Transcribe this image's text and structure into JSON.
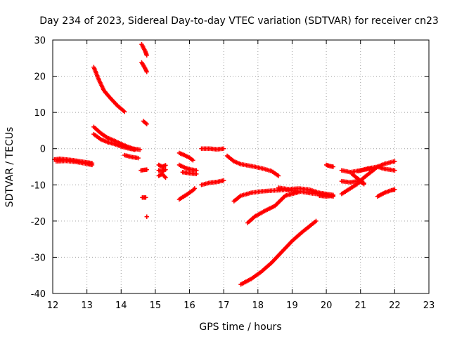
{
  "chart_data": {
    "type": "scatter",
    "title": "Day 234 of 2023, Sidereal Day-to-day VTEC variation (SDTVAR) for receiver cn23",
    "xlabel": "GPS time / hours",
    "ylabel": "SDTVAR / TECUs",
    "xlim": [
      12,
      23
    ],
    "ylim": [
      -40,
      30
    ],
    "x_ticks": [
      12,
      13,
      14,
      15,
      16,
      17,
      18,
      19,
      20,
      21,
      22,
      23
    ],
    "y_ticks": [
      -40,
      -30,
      -20,
      -10,
      0,
      10,
      20,
      30
    ],
    "x_tick_labels": [
      "12",
      "13",
      "14",
      "15",
      "16",
      "17",
      "18",
      "19",
      "20",
      "21",
      "22",
      "23"
    ],
    "y_tick_labels": [
      "-40",
      "-30",
      "-20",
      "-10",
      "0",
      "10",
      "20",
      "30"
    ],
    "grid": true,
    "marker": "+",
    "color": "#ff0000",
    "series": [
      {
        "name": "s1",
        "points": [
          [
            12.05,
            -3.0
          ],
          [
            12.2,
            -2.8
          ],
          [
            12.4,
            -3.0
          ],
          [
            12.6,
            -3.2
          ],
          [
            12.8,
            -3.5
          ],
          [
            13.0,
            -3.8
          ],
          [
            13.15,
            -4.0
          ]
        ]
      },
      {
        "name": "s2",
        "points": [
          [
            12.1,
            -3.5
          ],
          [
            12.4,
            -3.4
          ],
          [
            12.7,
            -3.7
          ],
          [
            13.0,
            -4.2
          ],
          [
            13.15,
            -4.5
          ]
        ]
      },
      {
        "name": "s3",
        "points": [
          [
            13.2,
            22.5
          ],
          [
            13.35,
            19.0
          ],
          [
            13.5,
            16.0
          ],
          [
            13.7,
            13.8
          ],
          [
            13.9,
            11.8
          ],
          [
            14.1,
            10.2
          ]
        ]
      },
      {
        "name": "s4",
        "points": [
          [
            13.2,
            6.0
          ],
          [
            13.4,
            4.3
          ],
          [
            13.6,
            3.0
          ],
          [
            13.8,
            2.2
          ],
          [
            14.0,
            1.3
          ],
          [
            14.2,
            0.5
          ],
          [
            14.35,
            0.0
          ],
          [
            14.55,
            -0.3
          ]
        ]
      },
      {
        "name": "s5",
        "points": [
          [
            13.2,
            4.0
          ],
          [
            13.4,
            2.6
          ],
          [
            13.6,
            1.8
          ],
          [
            13.8,
            1.3
          ],
          [
            14.0,
            0.6
          ],
          [
            14.2,
            0.1
          ],
          [
            14.4,
            -0.3
          ]
        ]
      },
      {
        "name": "s6",
        "points": [
          [
            14.1,
            -1.8
          ],
          [
            14.3,
            -2.3
          ],
          [
            14.5,
            -2.6
          ]
        ]
      },
      {
        "name": "s7",
        "points": [
          [
            14.6,
            28.8
          ],
          [
            14.7,
            27.0
          ],
          [
            14.75,
            25.8
          ]
        ]
      },
      {
        "name": "s8",
        "points": [
          [
            14.6,
            23.8
          ],
          [
            14.7,
            22.2
          ],
          [
            14.75,
            21.2
          ]
        ]
      },
      {
        "name": "s9",
        "points": [
          [
            14.65,
            7.6
          ],
          [
            14.75,
            6.8
          ]
        ]
      },
      {
        "name": "s10",
        "points": [
          [
            14.58,
            -6.0
          ],
          [
            14.65,
            -5.9
          ],
          [
            14.75,
            -5.8
          ]
        ]
      },
      {
        "name": "s11",
        "points": [
          [
            14.62,
            -13.5
          ],
          [
            14.72,
            -13.5
          ]
        ]
      },
      {
        "name": "s12",
        "points": [
          [
            14.75,
            -18.8
          ]
        ]
      },
      {
        "name": "s13",
        "points": [
          [
            15.1,
            -4.5
          ],
          [
            15.2,
            -5.0
          ],
          [
            15.3,
            -4.6
          ]
        ]
      },
      {
        "name": "s14",
        "points": [
          [
            15.1,
            -7.5
          ],
          [
            15.2,
            -7.0
          ],
          [
            15.3,
            -8.0
          ]
        ]
      },
      {
        "name": "s15",
        "points": [
          [
            15.1,
            -6.0
          ],
          [
            15.2,
            -6.2
          ],
          [
            15.3,
            -5.8
          ]
        ]
      },
      {
        "name": "s16",
        "points": [
          [
            15.7,
            -1.2
          ],
          [
            15.85,
            -1.8
          ],
          [
            16.0,
            -2.5
          ],
          [
            16.1,
            -3.2
          ]
        ]
      },
      {
        "name": "s17",
        "points": [
          [
            15.7,
            -4.5
          ],
          [
            15.85,
            -5.2
          ],
          [
            16.0,
            -5.7
          ],
          [
            16.2,
            -6.0
          ]
        ]
      },
      {
        "name": "s18",
        "points": [
          [
            15.8,
            -6.5
          ],
          [
            16.0,
            -6.8
          ],
          [
            16.2,
            -7.0
          ]
        ]
      },
      {
        "name": "s19",
        "points": [
          [
            15.7,
            -14.0
          ],
          [
            15.9,
            -12.8
          ],
          [
            16.1,
            -11.5
          ],
          [
            16.15,
            -11.0
          ]
        ]
      },
      {
        "name": "s20",
        "points": [
          [
            16.35,
            0.0
          ],
          [
            16.6,
            0.0
          ],
          [
            16.8,
            -0.2
          ],
          [
            17.0,
            0.0
          ]
        ]
      },
      {
        "name": "s21",
        "points": [
          [
            16.35,
            -10.0
          ],
          [
            16.6,
            -9.4
          ],
          [
            16.8,
            -9.2
          ],
          [
            17.0,
            -8.8
          ]
        ]
      },
      {
        "name": "s22",
        "points": [
          [
            17.1,
            -2.0
          ],
          [
            17.3,
            -3.5
          ],
          [
            17.5,
            -4.3
          ],
          [
            17.8,
            -4.8
          ],
          [
            18.1,
            -5.4
          ],
          [
            18.4,
            -6.2
          ],
          [
            18.6,
            -7.5
          ]
        ]
      },
      {
        "name": "s23",
        "points": [
          [
            17.3,
            -14.5
          ],
          [
            17.5,
            -13.0
          ],
          [
            17.8,
            -12.2
          ],
          [
            18.1,
            -11.8
          ],
          [
            18.4,
            -11.6
          ],
          [
            18.8,
            -11.4
          ],
          [
            19.2,
            -11.8
          ],
          [
            19.6,
            -12.4
          ],
          [
            20.0,
            -12.8
          ],
          [
            20.2,
            -13.2
          ]
        ]
      },
      {
        "name": "s24",
        "points": [
          [
            17.7,
            -20.5
          ],
          [
            17.9,
            -18.8
          ],
          [
            18.2,
            -17.2
          ],
          [
            18.5,
            -15.8
          ],
          [
            18.8,
            -13.0
          ],
          [
            19.0,
            -12.5
          ],
          [
            19.2,
            -12.0
          ]
        ]
      },
      {
        "name": "s25",
        "points": [
          [
            17.5,
            -37.5
          ],
          [
            17.8,
            -36.0
          ],
          [
            18.1,
            -34.0
          ],
          [
            18.4,
            -31.5
          ],
          [
            18.7,
            -28.5
          ],
          [
            19.0,
            -25.5
          ],
          [
            19.3,
            -23.0
          ],
          [
            19.7,
            -20.0
          ]
        ]
      },
      {
        "name": "s26",
        "points": [
          [
            18.6,
            -10.8
          ],
          [
            18.9,
            -11.2
          ],
          [
            19.2,
            -11.0
          ],
          [
            19.5,
            -11.3
          ],
          [
            19.8,
            -12.2
          ],
          [
            20.0,
            -12.5
          ],
          [
            20.2,
            -12.8
          ]
        ]
      },
      {
        "name": "s27",
        "points": [
          [
            19.8,
            -13.0
          ],
          [
            20.0,
            -13.2
          ],
          [
            20.2,
            -13.0
          ]
        ]
      },
      {
        "name": "s28",
        "points": [
          [
            20.0,
            -4.5
          ],
          [
            20.1,
            -4.8
          ],
          [
            20.2,
            -5.0
          ]
        ]
      },
      {
        "name": "s29",
        "points": [
          [
            20.45,
            -6.0
          ],
          [
            20.7,
            -6.5
          ],
          [
            21.0,
            -6.0
          ],
          [
            21.3,
            -5.5
          ]
        ]
      },
      {
        "name": "s30",
        "points": [
          [
            20.45,
            -9.0
          ],
          [
            20.7,
            -9.3
          ],
          [
            20.9,
            -9.0
          ],
          [
            21.1,
            -9.5
          ]
        ]
      },
      {
        "name": "s31",
        "points": [
          [
            20.45,
            -12.5
          ],
          [
            20.7,
            -11.0
          ],
          [
            20.9,
            -9.8
          ],
          [
            21.1,
            -8.0
          ],
          [
            21.3,
            -6.5
          ],
          [
            21.5,
            -5.0
          ],
          [
            21.7,
            -4.2
          ],
          [
            22.0,
            -3.5
          ]
        ]
      },
      {
        "name": "s32",
        "points": [
          [
            20.75,
            -7.0
          ],
          [
            20.95,
            -8.5
          ],
          [
            21.1,
            -9.8
          ]
        ]
      },
      {
        "name": "s33",
        "points": [
          [
            20.95,
            -6.2
          ],
          [
            21.2,
            -5.5
          ],
          [
            21.5,
            -5.0
          ],
          [
            21.7,
            -5.6
          ],
          [
            22.0,
            -6.0
          ]
        ]
      },
      {
        "name": "s34",
        "points": [
          [
            21.5,
            -13.2
          ],
          [
            21.7,
            -12.2
          ],
          [
            21.9,
            -11.5
          ],
          [
            22.0,
            -11.3
          ]
        ]
      }
    ]
  }
}
